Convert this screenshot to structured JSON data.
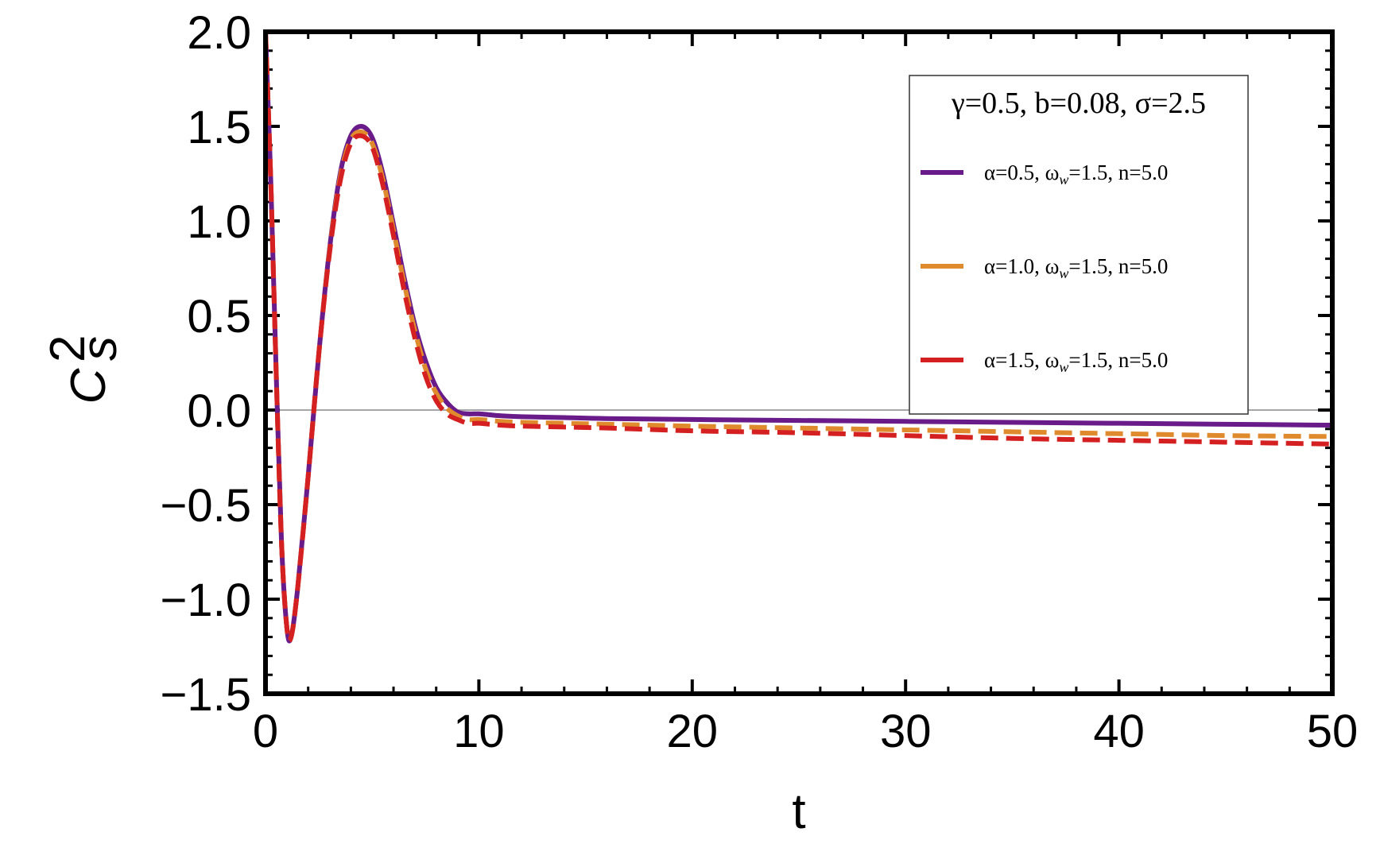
{
  "chart_data": {
    "type": "line",
    "title": "",
    "xlabel": "t",
    "ylabel_main": "C",
    "ylabel_sup": "2",
    "ylabel_sub": "s",
    "xlim": [
      0,
      50
    ],
    "ylim": [
      -1.5,
      2.0
    ],
    "x_ticks": [
      0,
      10,
      20,
      30,
      40,
      50
    ],
    "x_tick_labels": [
      "0",
      "10",
      "20",
      "30",
      "40",
      "50"
    ],
    "y_ticks": [
      -1.5,
      -1.0,
      -0.5,
      0.0,
      0.5,
      1.0,
      1.5,
      2.0
    ],
    "y_tick_labels": [
      "−1.5",
      "−1.0",
      "−0.5",
      "0.0",
      "0.5",
      "1.0",
      "1.5",
      "2.0"
    ],
    "grid": false,
    "zero_line": true,
    "legend_position": "top-right",
    "legend_title": "γ=0.5, b=0.08, σ=2.5",
    "series": [
      {
        "name": "α=0.5, ωw=1.5, n=5.0",
        "label_parts": [
          "α=0.5, ω",
          "w",
          "=1.5, n=5.0"
        ],
        "color": "#6a1b8a",
        "dash": "solid",
        "x": [
          0,
          0.25,
          0.5,
          0.75,
          1.0,
          1.2,
          1.5,
          2.0,
          2.5,
          3.0,
          3.5,
          4.0,
          4.5,
          5.0,
          5.5,
          6.0,
          6.5,
          7.0,
          7.5,
          8.0,
          8.5,
          9.0,
          9.5,
          10.0,
          10.5,
          11.0,
          12,
          14,
          16,
          20,
          25,
          30,
          35,
          40,
          45,
          50
        ],
        "y": [
          2.0,
          1.2,
          0.2,
          -0.7,
          -1.15,
          -1.2,
          -0.95,
          -0.35,
          0.3,
          0.85,
          1.25,
          1.45,
          1.5,
          1.44,
          1.25,
          0.98,
          0.7,
          0.45,
          0.26,
          0.12,
          0.04,
          -0.01,
          -0.02,
          -0.02,
          -0.025,
          -0.03,
          -0.035,
          -0.04,
          -0.045,
          -0.05,
          -0.055,
          -0.06,
          -0.065,
          -0.07,
          -0.075,
          -0.08
        ]
      },
      {
        "name": "α=1.0, ωw=1.5, n=5.0",
        "label_parts": [
          "α=1.0, ω",
          "w",
          "=1.5, n=5.0"
        ],
        "color": "#e08a2e",
        "dash": "dashed",
        "x": [
          0,
          0.25,
          0.5,
          0.75,
          1.0,
          1.2,
          1.5,
          2.0,
          2.5,
          3.0,
          3.5,
          4.0,
          4.5,
          5.0,
          5.5,
          6.0,
          6.5,
          7.0,
          7.5,
          8.0,
          8.5,
          9.0,
          9.5,
          10.0,
          10.5,
          11.0,
          12,
          14,
          16,
          20,
          25,
          30,
          35,
          40,
          45,
          50
        ],
        "y": [
          2.0,
          1.2,
          0.2,
          -0.7,
          -1.15,
          -1.2,
          -0.95,
          -0.35,
          0.3,
          0.84,
          1.23,
          1.43,
          1.47,
          1.41,
          1.22,
          0.95,
          0.67,
          0.42,
          0.22,
          0.09,
          0.01,
          -0.03,
          -0.05,
          -0.05,
          -0.055,
          -0.06,
          -0.065,
          -0.07,
          -0.075,
          -0.085,
          -0.095,
          -0.105,
          -0.115,
          -0.125,
          -0.135,
          -0.14
        ]
      },
      {
        "name": "α=1.5, ωw=1.5, n=5.0",
        "label_parts": [
          "α=1.5, ω",
          "w",
          "=1.5, n=5.0"
        ],
        "color": "#d42020",
        "dash": "dashed",
        "x": [
          0,
          0.25,
          0.5,
          0.75,
          1.0,
          1.2,
          1.5,
          2.0,
          2.5,
          3.0,
          3.5,
          4.0,
          4.5,
          5.0,
          5.5,
          6.0,
          6.5,
          7.0,
          7.5,
          8.0,
          8.5,
          9.0,
          9.5,
          10.0,
          10.5,
          11.0,
          12,
          14,
          16,
          20,
          25,
          30,
          35,
          40,
          45,
          50
        ],
        "y": [
          2.0,
          1.2,
          0.2,
          -0.7,
          -1.15,
          -1.2,
          -0.95,
          -0.35,
          0.3,
          0.83,
          1.21,
          1.41,
          1.45,
          1.39,
          1.19,
          0.92,
          0.63,
          0.38,
          0.18,
          0.05,
          -0.02,
          -0.05,
          -0.07,
          -0.07,
          -0.075,
          -0.08,
          -0.085,
          -0.09,
          -0.095,
          -0.11,
          -0.12,
          -0.135,
          -0.15,
          -0.16,
          -0.17,
          -0.18
        ]
      }
    ]
  }
}
